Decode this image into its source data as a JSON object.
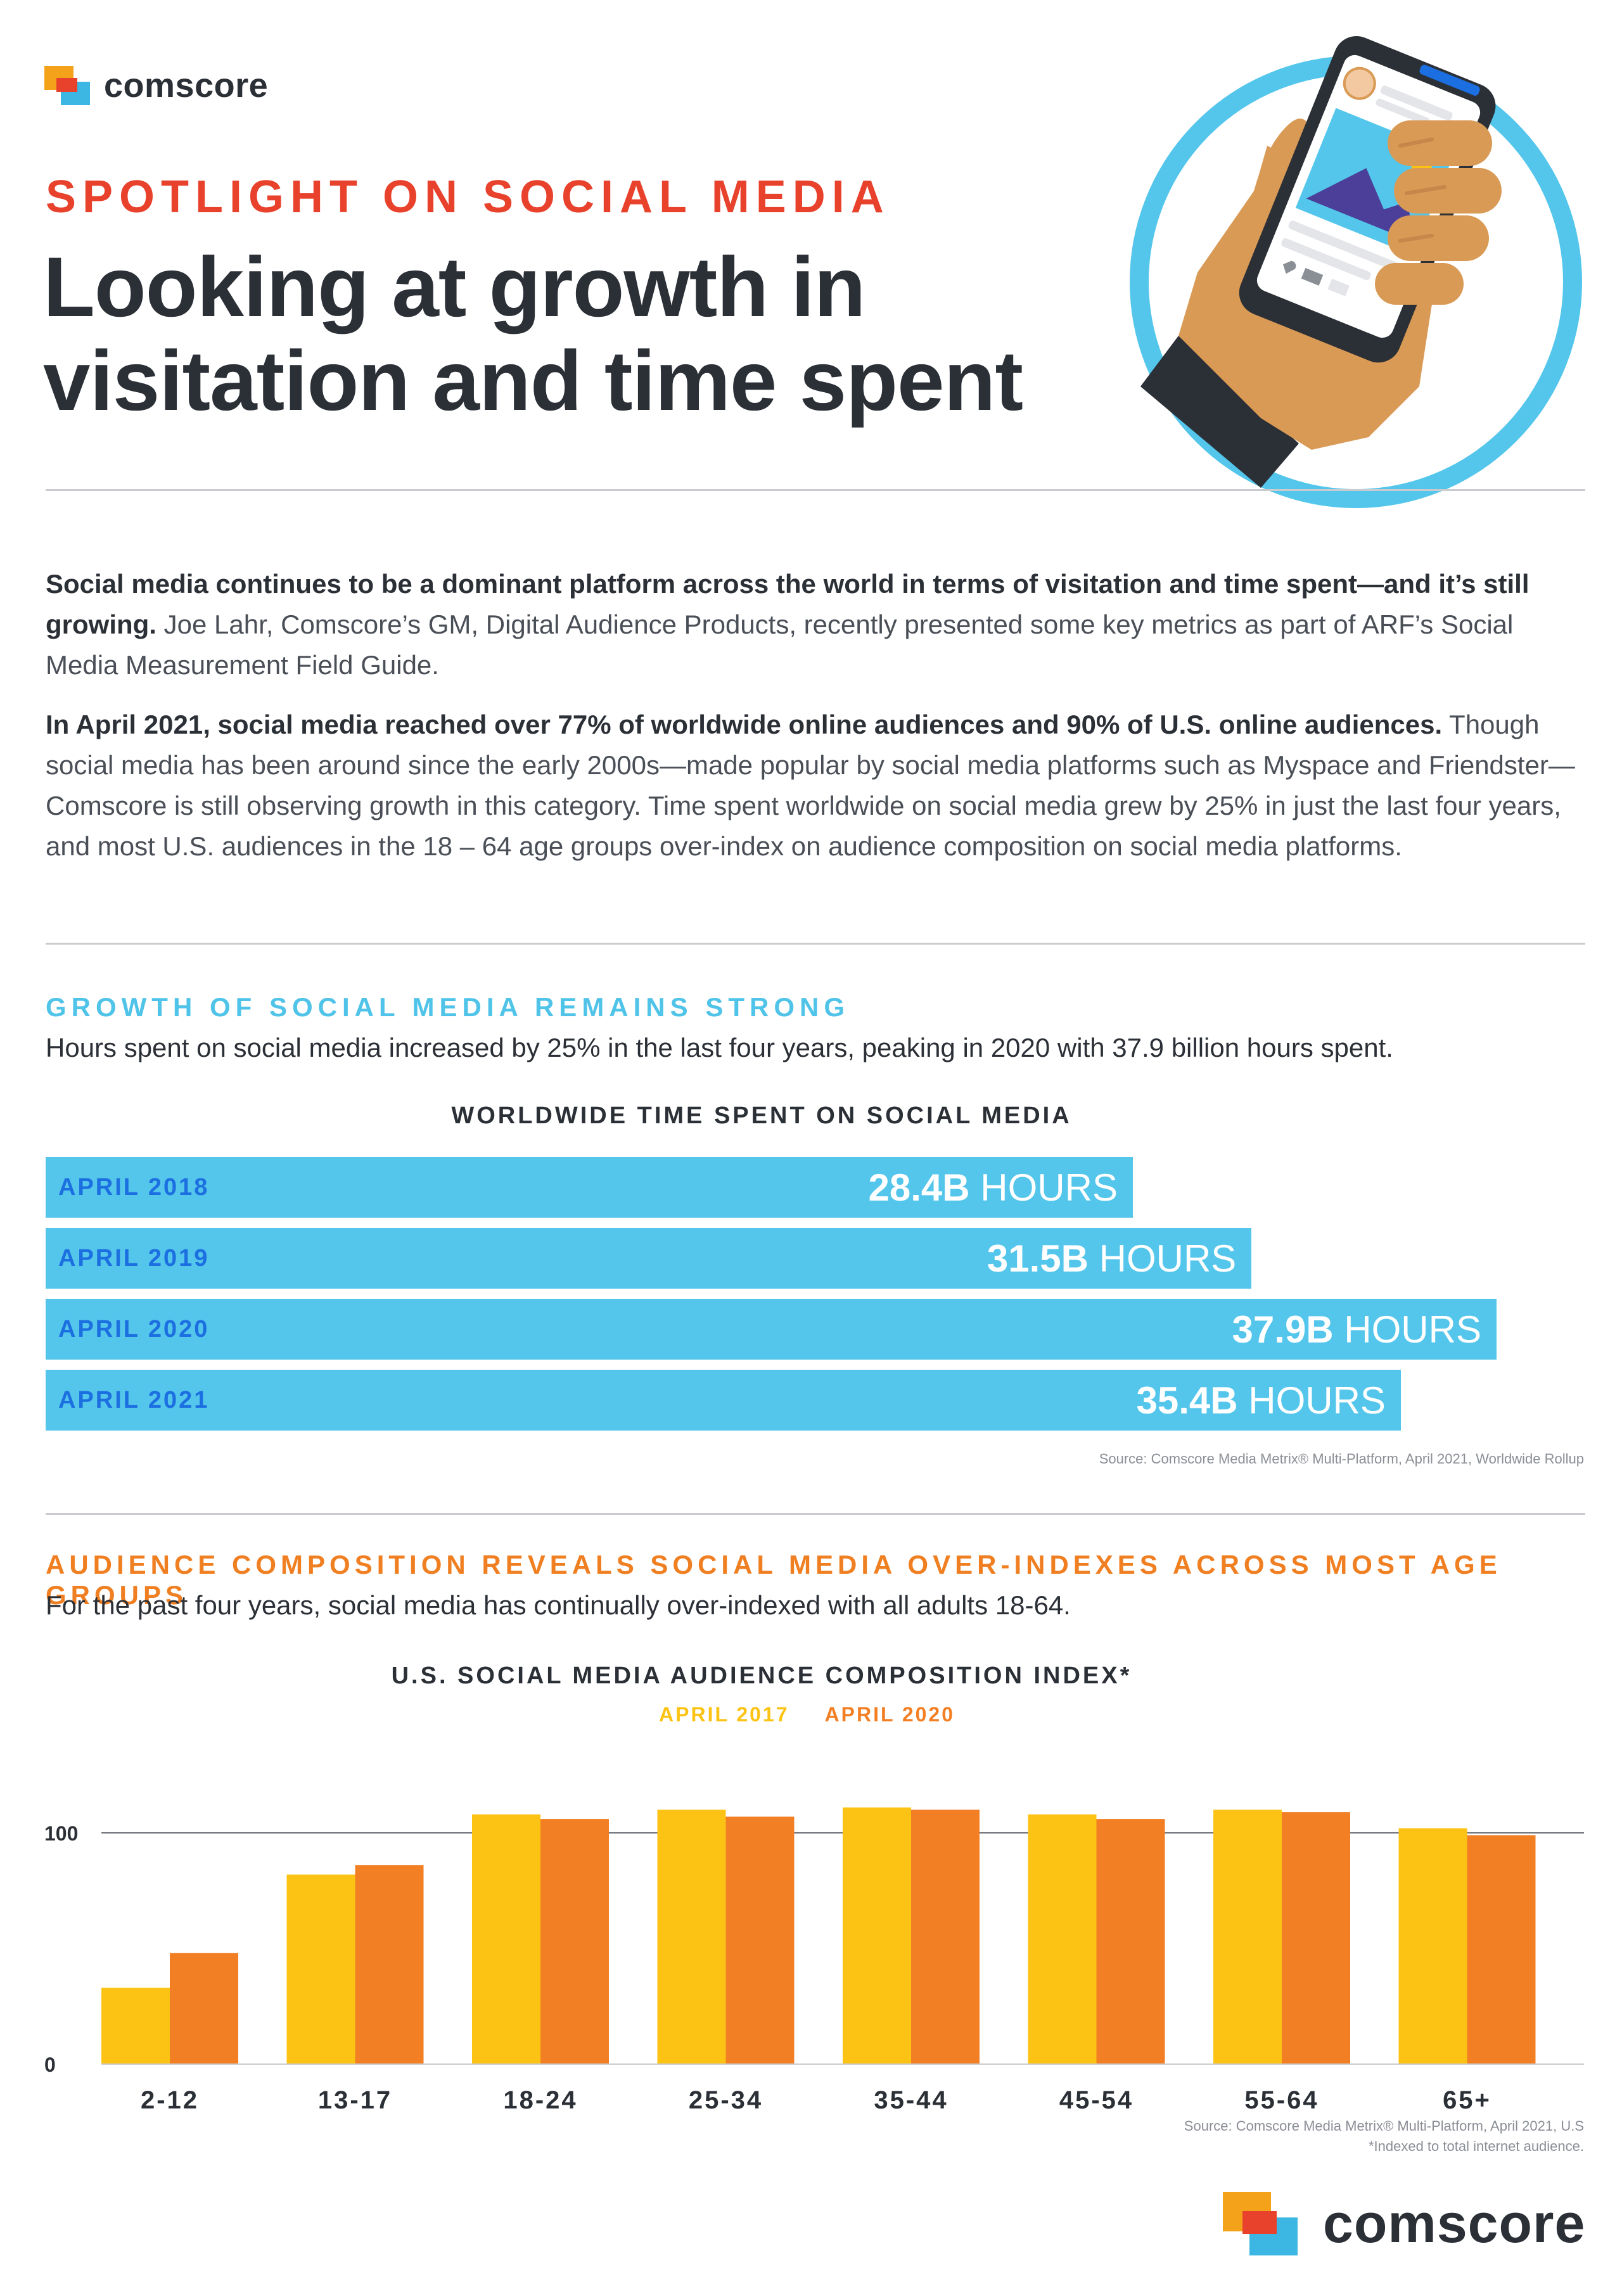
{
  "brand": {
    "name": "comscore",
    "colors": {
      "orange": "#f5a21b",
      "blue": "#3cb6e3",
      "red": "#e8412c"
    }
  },
  "header": {
    "kicker": "SPOTLIGHT ON SOCIAL MEDIA",
    "headline_line1": "Looking at growth in",
    "headline_line2": "visitation and time spent",
    "illustration": "hand-holding-phone-icon"
  },
  "intro": {
    "p1_bold": "Social media continues to be a dominant platform across the world in terms of visitation and time spent—and it’s still growing.",
    "p1_rest": " Joe Lahr, Comscore’s GM, Digital Audience Products, recently presented some key metrics as part of ARF’s Social Media Measurement Field Guide.",
    "p2_bold": "In April 2021, social media reached over 77% of worldwide online audiences and 90% of U.S. online audiences.",
    "p2_rest": " Though social media has been around since the early 2000s—made popular by social media platforms such as Myspace and Friendster—Comscore is still observing growth in this category. Time spent worldwide on social media grew by 25% in just the last four years, and most U.S. audiences in the 18 – 64 age groups over-index on audience composition on social media platforms."
  },
  "section1": {
    "title": "GROWTH OF SOCIAL MEDIA REMAINS STRONG",
    "subtitle": "Hours spent on social media increased by 25% in the last four years, peaking in 2020 with 37.9 billion hours spent.",
    "chart_title": "WORLDWIDE TIME SPENT ON SOCIAL MEDIA",
    "source": "Source: Comscore Media Metrix® Multi-Platform, April 2021, Worldwide Rollup",
    "unit": "HOURS",
    "title_color": "#4fc3e8",
    "bar_color": "#54c6eb",
    "label_color": "#1c6fe0"
  },
  "section2": {
    "title": "AUDIENCE COMPOSITION REVEALS SOCIAL MEDIA OVER-INDEXES ACROSS MOST AGE GROUPS",
    "subtitle": "For the past four years, social media has continually over-indexed with all adults 18-64.",
    "chart_title": "U.S. SOCIAL MEDIA AUDIENCE COMPOSITION INDEX*",
    "source_line1": "Source: Comscore Media Metrix® Multi-Platform, April 2021, U.S",
    "source_line2": "*Indexed to total internet audience.",
    "title_color": "#f07f22"
  },
  "chart_data": [
    {
      "type": "bar",
      "orientation": "horizontal",
      "title": "WORLDWIDE TIME SPENT ON SOCIAL MEDIA",
      "categories": [
        "APRIL 2018",
        "APRIL 2019",
        "APRIL 2020",
        "APRIL 2021"
      ],
      "values": [
        28.4,
        31.5,
        37.9,
        35.4
      ],
      "value_labels": [
        "28.4B",
        "31.5B",
        "37.9B",
        "35.4B"
      ],
      "unit": "HOURS",
      "xlim": [
        0,
        37.9
      ]
    },
    {
      "type": "bar",
      "title": "U.S. SOCIAL MEDIA AUDIENCE COMPOSITION INDEX*",
      "categories": [
        "2-12",
        "13-17",
        "18-24",
        "25-34",
        "35-44",
        "45-54",
        "55-64",
        "65+"
      ],
      "series": [
        {
          "name": "APRIL 2017",
          "color": "#fcc314",
          "values": [
            33,
            82,
            108,
            110,
            111,
            108,
            110,
            102
          ]
        },
        {
          "name": "APRIL 2020",
          "color": "#f37f24",
          "values": [
            48,
            86,
            106,
            107,
            110,
            106,
            109,
            99
          ]
        }
      ],
      "yticks": [
        "0",
        "100"
      ],
      "ylim": [
        0,
        120
      ],
      "grid": "reference line at 100",
      "legend": "top-center"
    }
  ]
}
